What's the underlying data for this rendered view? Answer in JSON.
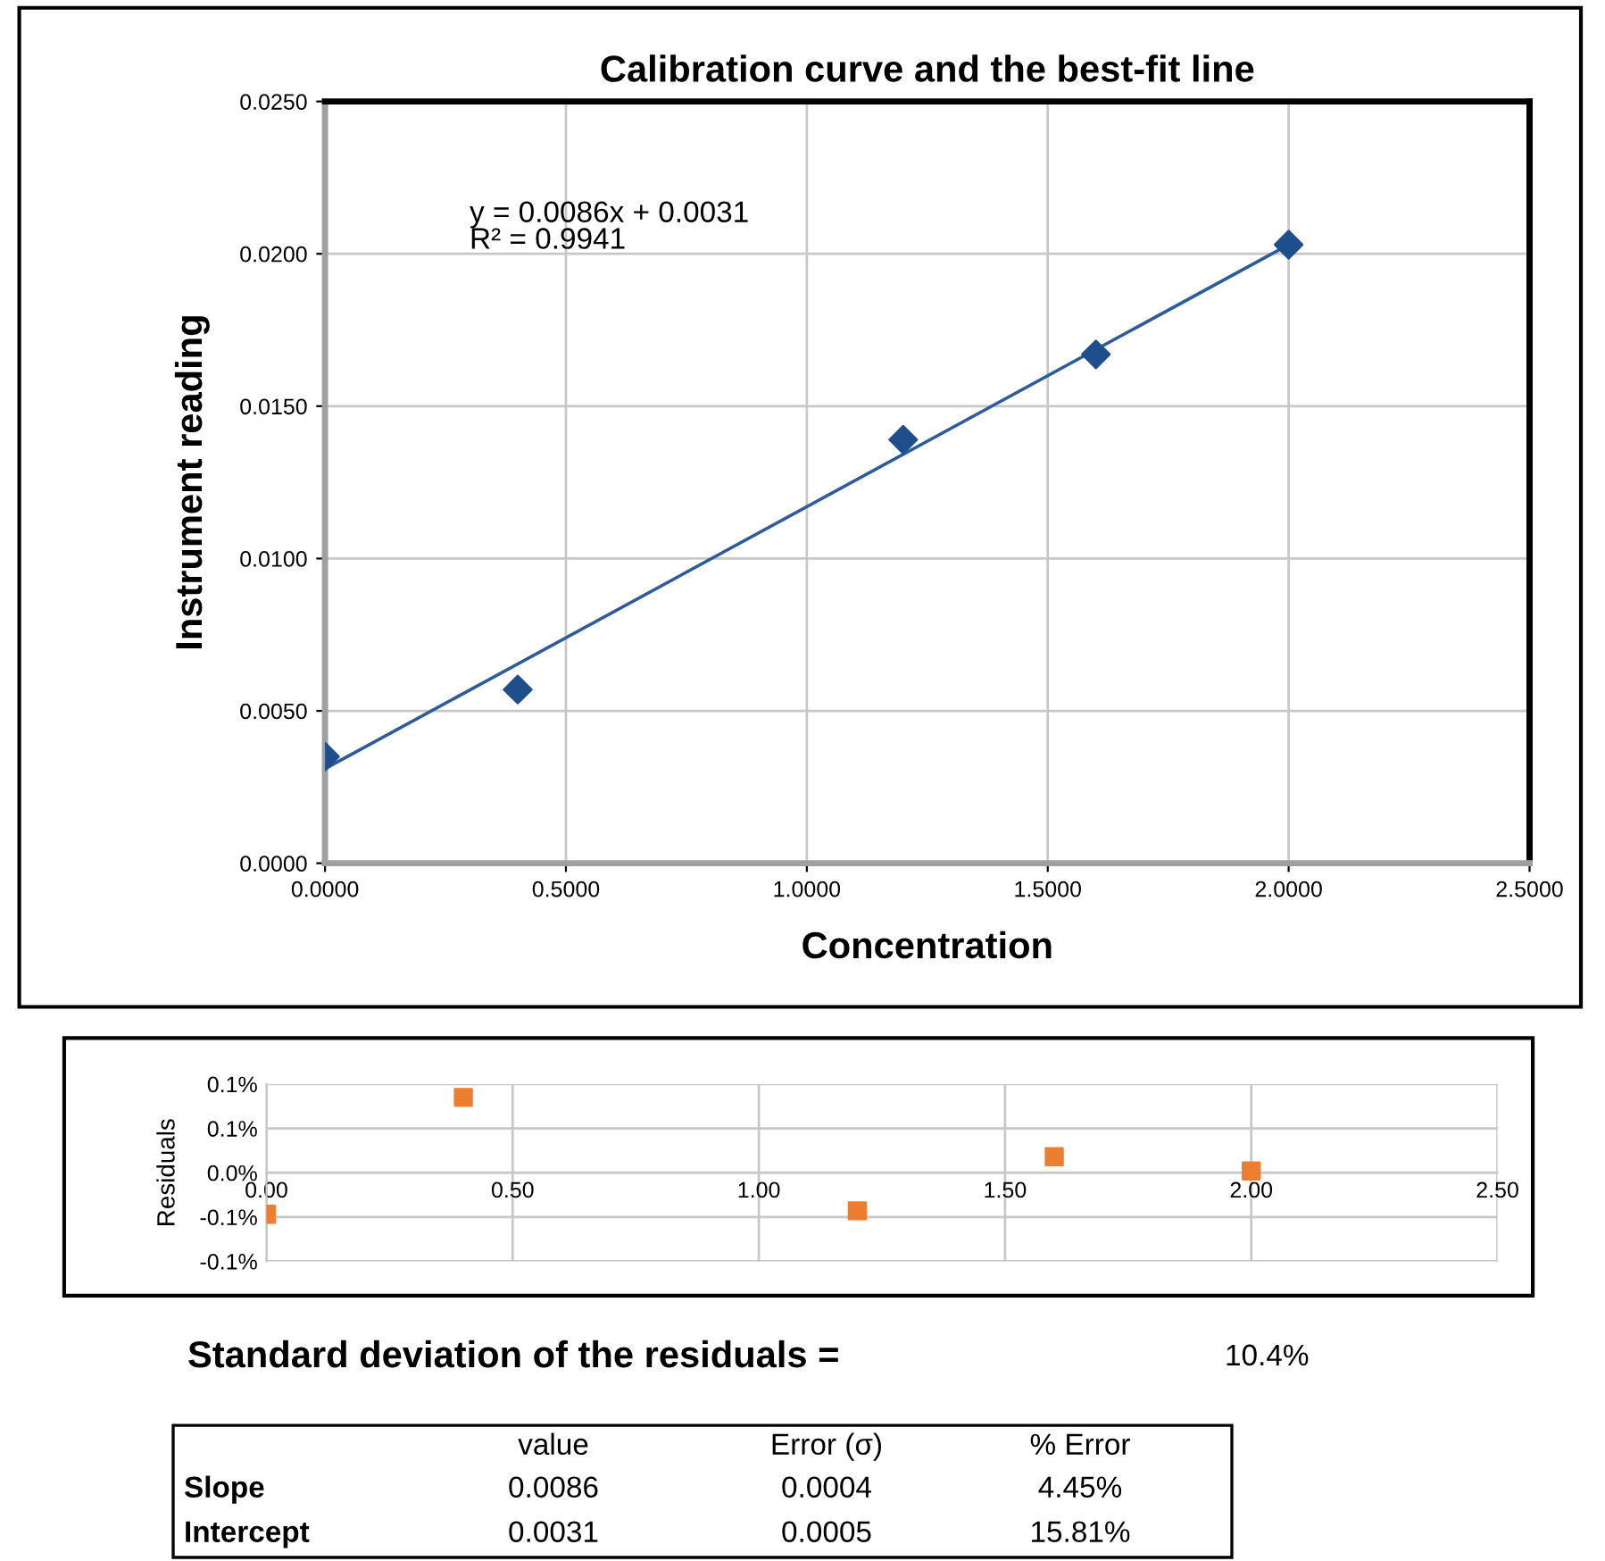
{
  "chart_data": [
    {
      "type": "scatter",
      "title": "Calibration curve and the best-fit line",
      "xlabel": "Concentration",
      "ylabel": "Instrument reading",
      "xlim": [
        0,
        2.5
      ],
      "xticks": [
        {
          "value": 0,
          "label": "0.0000"
        },
        {
          "value": 0.5,
          "label": "0.5000"
        },
        {
          "value": 1,
          "label": "1.0000"
        },
        {
          "value": 1.5,
          "label": "1.5000"
        },
        {
          "value": 2,
          "label": "2.0000"
        },
        {
          "value": 2.5,
          "label": "2.5000"
        }
      ],
      "ylim": [
        0,
        0.025
      ],
      "yticks": [
        {
          "value": 0,
          "label": "0.0000"
        },
        {
          "value": 0.005,
          "label": "0.0050"
        },
        {
          "value": 0.01,
          "label": "0.0100"
        },
        {
          "value": 0.015,
          "label": "0.0150"
        },
        {
          "value": 0.02,
          "label": "0.0200"
        },
        {
          "value": 0.025,
          "label": "0.0250"
        }
      ],
      "grid": true,
      "legend": false,
      "annotations": [
        "y = 0.0086x + 0.0031\nR² = 0.9941"
      ],
      "series": [
        {
          "type": "scatter",
          "marker": "diamond",
          "color": "#1f4e8c",
          "x": [
            0,
            0.4,
            1.2,
            1.6,
            2.0
          ],
          "values": [
            0.0035,
            0.0057,
            0.0139,
            0.0167,
            0.0203
          ]
        },
        {
          "type": "line",
          "marker": "none",
          "color": "#2e5c9a",
          "x": [
            0,
            2.0
          ],
          "values": [
            0.0031,
            0.0203
          ]
        }
      ]
    },
    {
      "type": "scatter",
      "ylabel": "Residuals",
      "marker": "square",
      "grid": true,
      "legend": false,
      "xlim": [
        0,
        2.5
      ],
      "xticks": [
        {
          "value": 0,
          "label": "0.00"
        },
        {
          "value": 0.5,
          "label": "0.50"
        },
        {
          "value": 1,
          "label": "1.00"
        },
        {
          "value": 1.5,
          "label": "1.50"
        },
        {
          "value": 2,
          "label": "2.00"
        },
        {
          "value": 2.5,
          "label": "2.50"
        }
      ],
      "ylim": [
        -0.1,
        0.1
      ],
      "yticks": [
        {
          "value": -0.1,
          "label": "-0.1%"
        },
        {
          "value": -0.05,
          "label": "-0.1%"
        },
        {
          "value": 0,
          "label": "0.0%"
        },
        {
          "value": 0.05,
          "label": "0.1%"
        },
        {
          "value": 0.1,
          "label": "0.1%"
        }
      ],
      "series": [
        {
          "color": "#ed7d31",
          "x": [
            0,
            0.4,
            1.2,
            1.6,
            2.0
          ],
          "values": [
            -0.047,
            0.085,
            -0.043,
            0.018,
            0.002
          ]
        }
      ]
    },
    {
      "type": "other",
      "annotations": [
        "Standard deviation of the residuals =",
        "10.4%",
        "value",
        "Error (σ)",
        "% Error",
        "Slope",
        "0.0086",
        "0.0004",
        "4.45%",
        "Intercept",
        "0.0031",
        "0.0005",
        "15.81%"
      ]
    }
  ]
}
